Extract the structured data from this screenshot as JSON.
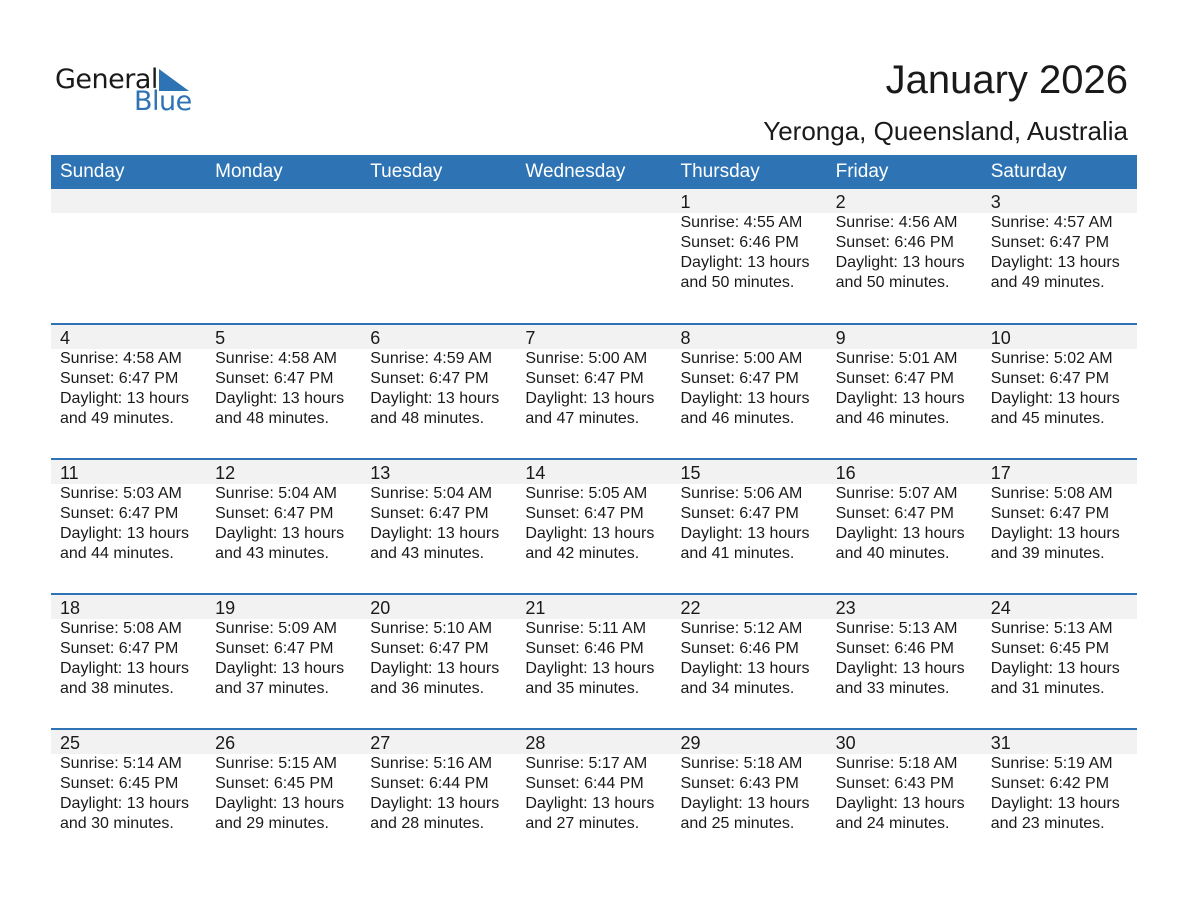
{
  "logo": {
    "general": "General",
    "blue": "Blue"
  },
  "title": "January 2026",
  "subtitle": "Yeronga, Queensland, Australia",
  "colors": {
    "accent": "#2e74b5",
    "band": "#f2f2f2"
  },
  "weekdays": [
    "Sunday",
    "Monday",
    "Tuesday",
    "Wednesday",
    "Thursday",
    "Friday",
    "Saturday"
  ],
  "weeks": [
    [
      null,
      null,
      null,
      null,
      {
        "day": "1",
        "sunrise": "Sunrise: 4:55 AM",
        "sunset": "Sunset: 6:46 PM",
        "daylight": "Daylight: 13 hours",
        "minutes": "and 50 minutes."
      },
      {
        "day": "2",
        "sunrise": "Sunrise: 4:56 AM",
        "sunset": "Sunset: 6:46 PM",
        "daylight": "Daylight: 13 hours",
        "minutes": "and 50 minutes."
      },
      {
        "day": "3",
        "sunrise": "Sunrise: 4:57 AM",
        "sunset": "Sunset: 6:47 PM",
        "daylight": "Daylight: 13 hours",
        "minutes": "and 49 minutes."
      }
    ],
    [
      {
        "day": "4",
        "sunrise": "Sunrise: 4:58 AM",
        "sunset": "Sunset: 6:47 PM",
        "daylight": "Daylight: 13 hours",
        "minutes": "and 49 minutes."
      },
      {
        "day": "5",
        "sunrise": "Sunrise: 4:58 AM",
        "sunset": "Sunset: 6:47 PM",
        "daylight": "Daylight: 13 hours",
        "minutes": "and 48 minutes."
      },
      {
        "day": "6",
        "sunrise": "Sunrise: 4:59 AM",
        "sunset": "Sunset: 6:47 PM",
        "daylight": "Daylight: 13 hours",
        "minutes": "and 48 minutes."
      },
      {
        "day": "7",
        "sunrise": "Sunrise: 5:00 AM",
        "sunset": "Sunset: 6:47 PM",
        "daylight": "Daylight: 13 hours",
        "minutes": "and 47 minutes."
      },
      {
        "day": "8",
        "sunrise": "Sunrise: 5:00 AM",
        "sunset": "Sunset: 6:47 PM",
        "daylight": "Daylight: 13 hours",
        "minutes": "and 46 minutes."
      },
      {
        "day": "9",
        "sunrise": "Sunrise: 5:01 AM",
        "sunset": "Sunset: 6:47 PM",
        "daylight": "Daylight: 13 hours",
        "minutes": "and 46 minutes."
      },
      {
        "day": "10",
        "sunrise": "Sunrise: 5:02 AM",
        "sunset": "Sunset: 6:47 PM",
        "daylight": "Daylight: 13 hours",
        "minutes": "and 45 minutes."
      }
    ],
    [
      {
        "day": "11",
        "sunrise": "Sunrise: 5:03 AM",
        "sunset": "Sunset: 6:47 PM",
        "daylight": "Daylight: 13 hours",
        "minutes": "and 44 minutes."
      },
      {
        "day": "12",
        "sunrise": "Sunrise: 5:04 AM",
        "sunset": "Sunset: 6:47 PM",
        "daylight": "Daylight: 13 hours",
        "minutes": "and 43 minutes."
      },
      {
        "day": "13",
        "sunrise": "Sunrise: 5:04 AM",
        "sunset": "Sunset: 6:47 PM",
        "daylight": "Daylight: 13 hours",
        "minutes": "and 43 minutes."
      },
      {
        "day": "14",
        "sunrise": "Sunrise: 5:05 AM",
        "sunset": "Sunset: 6:47 PM",
        "daylight": "Daylight: 13 hours",
        "minutes": "and 42 minutes."
      },
      {
        "day": "15",
        "sunrise": "Sunrise: 5:06 AM",
        "sunset": "Sunset: 6:47 PM",
        "daylight": "Daylight: 13 hours",
        "minutes": "and 41 minutes."
      },
      {
        "day": "16",
        "sunrise": "Sunrise: 5:07 AM",
        "sunset": "Sunset: 6:47 PM",
        "daylight": "Daylight: 13 hours",
        "minutes": "and 40 minutes."
      },
      {
        "day": "17",
        "sunrise": "Sunrise: 5:08 AM",
        "sunset": "Sunset: 6:47 PM",
        "daylight": "Daylight: 13 hours",
        "minutes": "and 39 minutes."
      }
    ],
    [
      {
        "day": "18",
        "sunrise": "Sunrise: 5:08 AM",
        "sunset": "Sunset: 6:47 PM",
        "daylight": "Daylight: 13 hours",
        "minutes": "and 38 minutes."
      },
      {
        "day": "19",
        "sunrise": "Sunrise: 5:09 AM",
        "sunset": "Sunset: 6:47 PM",
        "daylight": "Daylight: 13 hours",
        "minutes": "and 37 minutes."
      },
      {
        "day": "20",
        "sunrise": "Sunrise: 5:10 AM",
        "sunset": "Sunset: 6:47 PM",
        "daylight": "Daylight: 13 hours",
        "minutes": "and 36 minutes."
      },
      {
        "day": "21",
        "sunrise": "Sunrise: 5:11 AM",
        "sunset": "Sunset: 6:46 PM",
        "daylight": "Daylight: 13 hours",
        "minutes": "and 35 minutes."
      },
      {
        "day": "22",
        "sunrise": "Sunrise: 5:12 AM",
        "sunset": "Sunset: 6:46 PM",
        "daylight": "Daylight: 13 hours",
        "minutes": "and 34 minutes."
      },
      {
        "day": "23",
        "sunrise": "Sunrise: 5:13 AM",
        "sunset": "Sunset: 6:46 PM",
        "daylight": "Daylight: 13 hours",
        "minutes": "and 33 minutes."
      },
      {
        "day": "24",
        "sunrise": "Sunrise: 5:13 AM",
        "sunset": "Sunset: 6:45 PM",
        "daylight": "Daylight: 13 hours",
        "minutes": "and 31 minutes."
      }
    ],
    [
      {
        "day": "25",
        "sunrise": "Sunrise: 5:14 AM",
        "sunset": "Sunset: 6:45 PM",
        "daylight": "Daylight: 13 hours",
        "minutes": "and 30 minutes."
      },
      {
        "day": "26",
        "sunrise": "Sunrise: 5:15 AM",
        "sunset": "Sunset: 6:45 PM",
        "daylight": "Daylight: 13 hours",
        "minutes": "and 29 minutes."
      },
      {
        "day": "27",
        "sunrise": "Sunrise: 5:16 AM",
        "sunset": "Sunset: 6:44 PM",
        "daylight": "Daylight: 13 hours",
        "minutes": "and 28 minutes."
      },
      {
        "day": "28",
        "sunrise": "Sunrise: 5:17 AM",
        "sunset": "Sunset: 6:44 PM",
        "daylight": "Daylight: 13 hours",
        "minutes": "and 27 minutes."
      },
      {
        "day": "29",
        "sunrise": "Sunrise: 5:18 AM",
        "sunset": "Sunset: 6:43 PM",
        "daylight": "Daylight: 13 hours",
        "minutes": "and 25 minutes."
      },
      {
        "day": "30",
        "sunrise": "Sunrise: 5:18 AM",
        "sunset": "Sunset: 6:43 PM",
        "daylight": "Daylight: 13 hours",
        "minutes": "and 24 minutes."
      },
      {
        "day": "31",
        "sunrise": "Sunrise: 5:19 AM",
        "sunset": "Sunset: 6:42 PM",
        "daylight": "Daylight: 13 hours",
        "minutes": "and 23 minutes."
      }
    ]
  ]
}
